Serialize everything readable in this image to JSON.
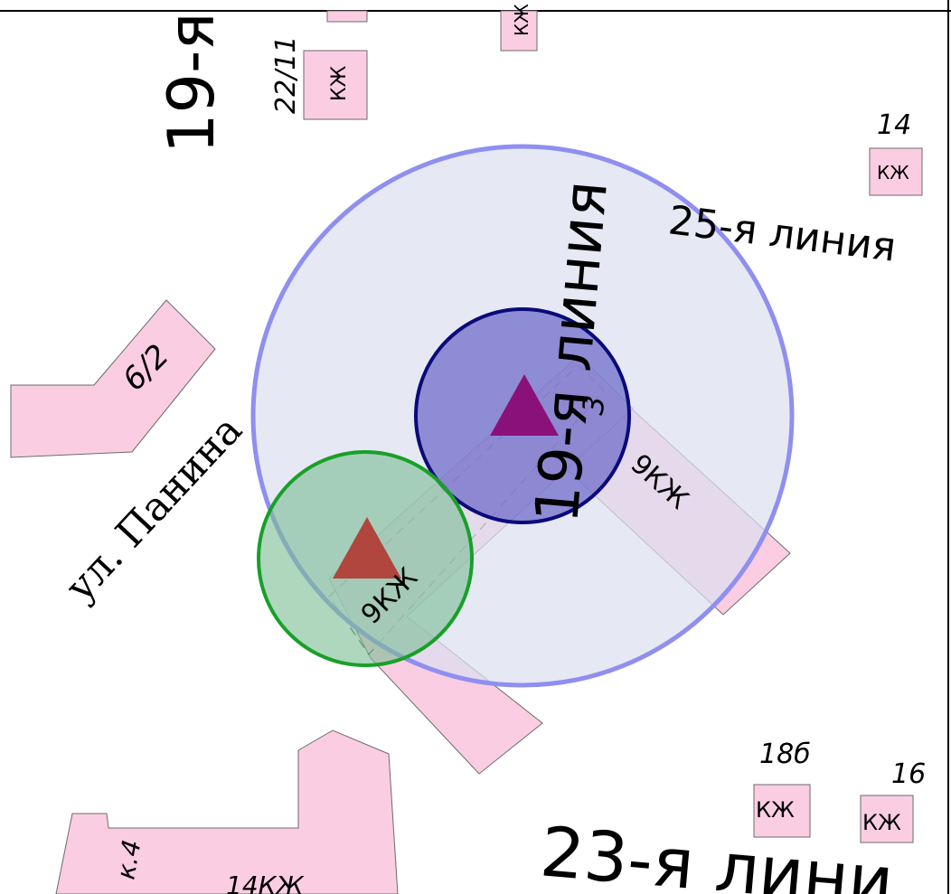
{
  "map": {
    "streets": {
      "line19_top": "19-я",
      "line19_vertical": "19-я линия",
      "line25": "25-я линия",
      "panina": "ул. Панина",
      "line23": "23-я лини"
    },
    "house_numbers": {
      "n22_11": "22/11",
      "n14": "14",
      "n6_2": "6/2",
      "n3": "3",
      "n18b": "18б",
      "n16": "16",
      "k4": "к.4",
      "n14kzh": "14КЖ"
    },
    "building_tags": {
      "kzh": "КЖ",
      "nine_kzh": "9КЖ"
    },
    "colors": {
      "building_fill": "#fbcde3",
      "large_zone_fill": "#dcdff0",
      "large_zone_stroke": "#8f8ff0",
      "blue_zone_fill": "#6c68c8",
      "blue_zone_stroke": "#0a0a7a",
      "green_zone_fill": "#7cbf96",
      "green_zone_stroke": "#18a028",
      "marker_purple": "#8b117a",
      "marker_red": "#b0463e"
    },
    "markers": [
      "triangle-purple-icon",
      "triangle-red-icon"
    ]
  }
}
